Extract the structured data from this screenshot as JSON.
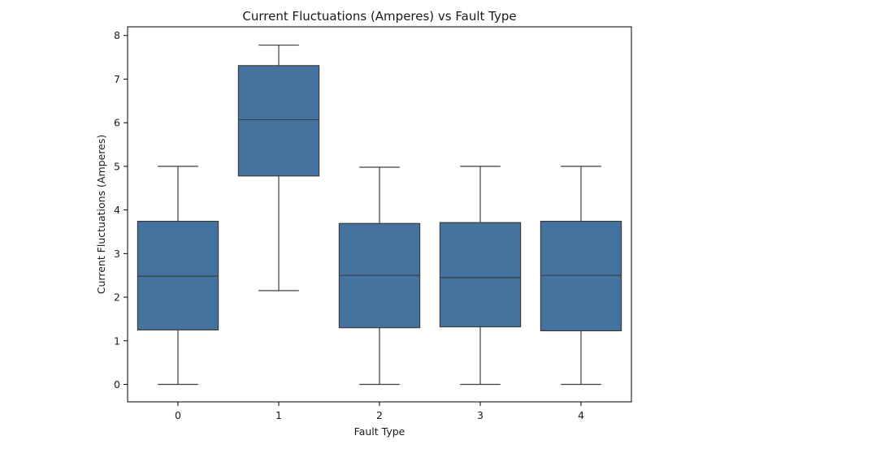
{
  "chart_data": {
    "type": "boxplot",
    "title": "Current Fluctuations (Amperes) vs Fault Type",
    "xlabel": "Fault Type",
    "ylabel": "Current Fluctuations (Amperes)",
    "categories": [
      "0",
      "1",
      "2",
      "3",
      "4"
    ],
    "ylim": [
      -0.4,
      8.2
    ],
    "yticks": [
      0,
      1,
      2,
      3,
      4,
      5,
      6,
      7,
      8
    ],
    "grid": false,
    "legend": "none",
    "box_color": "#4473a0",
    "edge_color": "#3d3d3d",
    "boxes": [
      {
        "category": "0",
        "whisker_low": 0.0,
        "q1": 1.25,
        "median": 2.48,
        "q3": 3.74,
        "whisker_high": 5.0
      },
      {
        "category": "1",
        "whisker_low": 2.15,
        "q1": 4.78,
        "median": 6.07,
        "q3": 7.31,
        "whisker_high": 7.78
      },
      {
        "category": "2",
        "whisker_low": 0.0,
        "q1": 1.3,
        "median": 2.5,
        "q3": 3.69,
        "whisker_high": 4.98
      },
      {
        "category": "3",
        "whisker_low": 0.0,
        "q1": 1.32,
        "median": 2.45,
        "q3": 3.71,
        "whisker_high": 5.0
      },
      {
        "category": "4",
        "whisker_low": 0.0,
        "q1": 1.23,
        "median": 2.5,
        "q3": 3.74,
        "whisker_high": 5.0
      }
    ]
  }
}
